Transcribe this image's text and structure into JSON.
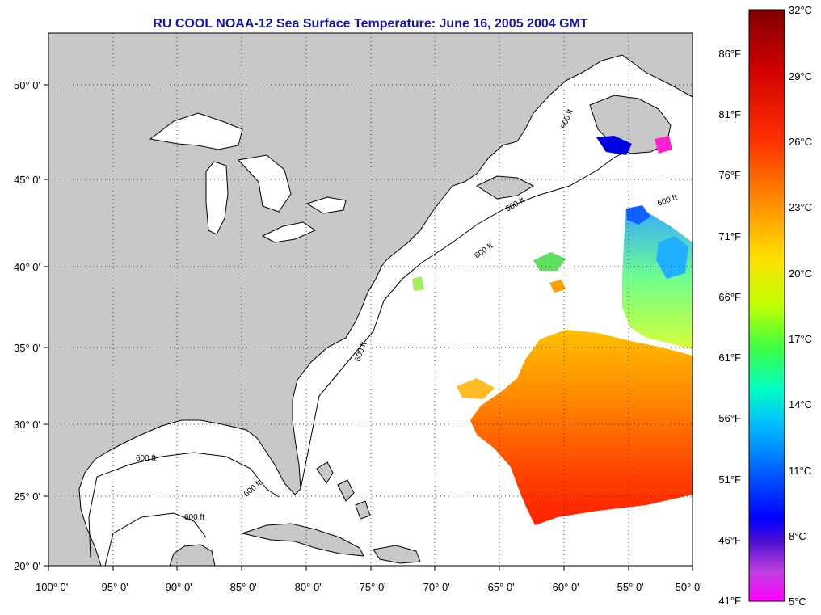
{
  "title": "RU COOL  NOAA-12  Sea Surface Temperature:  June 16, 2005 2004 GMT",
  "axes": {
    "x_ticks": [
      "-100° 0'",
      "-95° 0'",
      "-90° 0'",
      "-85° 0'",
      "-80° 0'",
      "-75° 0'",
      "-70° 0'",
      "-65° 0'",
      "-60° 0'",
      "-55° 0'",
      "-50° 0'"
    ],
    "y_ticks": [
      "50° 0'",
      "45° 0'",
      "40° 0'",
      "35° 0'",
      "30° 0'",
      "25° 0'",
      "20° 0'"
    ]
  },
  "contour_label": "600 ft",
  "colorbar": {
    "fahrenheit": [
      "86°F",
      "81°F",
      "76°F",
      "71°F",
      "66°F",
      "61°F",
      "56°F",
      "51°F",
      "46°F",
      "41°F"
    ],
    "celsius": [
      "32°C",
      "29°C",
      "26°C",
      "23°C",
      "20°C",
      "17°C",
      "14°C",
      "11°C",
      "8°C",
      "5°C"
    ],
    "colors": [
      "#800000",
      "#d00000",
      "#ff2000",
      "#ff6000",
      "#ffa000",
      "#ffe000",
      "#c0ff00",
      "#40ff40",
      "#00ffc0",
      "#00c0ff",
      "#0060ff",
      "#0000ff",
      "#4000d0",
      "#c040e0",
      "#ff00ff"
    ]
  },
  "colors": {
    "land": "#c8c8c8",
    "ocean": "#ffffff",
    "title": "#1414b4"
  }
}
